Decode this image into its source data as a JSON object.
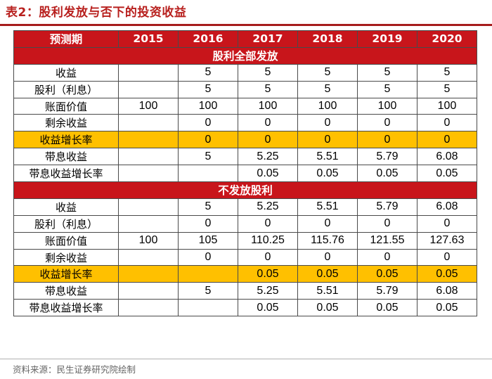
{
  "title": "表2：股利发放与否下的投资收益",
  "colors": {
    "header": "#c8151b",
    "highlight": "#ffc000",
    "title": "#b8201e"
  },
  "table": {
    "header": [
      "预测期",
      "2015",
      "2016",
      "2017",
      "2018",
      "2019",
      "2020"
    ],
    "sections": [
      {
        "name": "股利全部发放",
        "rows": [
          {
            "label": "收益",
            "values": [
              "",
              "5",
              "5",
              "5",
              "5",
              "5"
            ]
          },
          {
            "label": "股利（利息）",
            "values": [
              "",
              "5",
              "5",
              "5",
              "5",
              "5"
            ]
          },
          {
            "label": "账面价值",
            "values": [
              "100",
              "100",
              "100",
              "100",
              "100",
              "100"
            ]
          },
          {
            "label": "剩余收益",
            "values": [
              "",
              "0",
              "0",
              "0",
              "0",
              "0"
            ]
          },
          {
            "label": "收益增长率",
            "values": [
              "",
              "0",
              "0",
              "0",
              "0",
              "0"
            ],
            "highlight": true
          },
          {
            "label": "带息收益",
            "values": [
              "",
              "5",
              "5.25",
              "5.51",
              "5.79",
              "6.08"
            ]
          },
          {
            "label": "带息收益增长率",
            "values": [
              "",
              "",
              "0.05",
              "0.05",
              "0.05",
              "0.05"
            ]
          }
        ]
      },
      {
        "name": "不发放股利",
        "rows": [
          {
            "label": "收益",
            "values": [
              "",
              "5",
              "5.25",
              "5.51",
              "5.79",
              "6.08"
            ]
          },
          {
            "label": "股利（利息）",
            "values": [
              "",
              "0",
              "0",
              "0",
              "0",
              "0"
            ]
          },
          {
            "label": "账面价值",
            "values": [
              "100",
              "105",
              "110.25",
              "115.76",
              "121.55",
              "127.63"
            ]
          },
          {
            "label": "剩余收益",
            "values": [
              "",
              "0",
              "0",
              "0",
              "0",
              "0"
            ]
          },
          {
            "label": "收益增长率",
            "values": [
              "",
              "",
              "0.05",
              "0.05",
              "0.05",
              "0.05"
            ],
            "highlight": true
          },
          {
            "label": "带息收益",
            "values": [
              "",
              "5",
              "5.25",
              "5.51",
              "5.79",
              "6.08"
            ]
          },
          {
            "label": "带息收益增长率",
            "values": [
              "",
              "",
              "0.05",
              "0.05",
              "0.05",
              "0.05"
            ]
          }
        ]
      }
    ]
  },
  "source": "资料来源：民生证券研究院绘制"
}
